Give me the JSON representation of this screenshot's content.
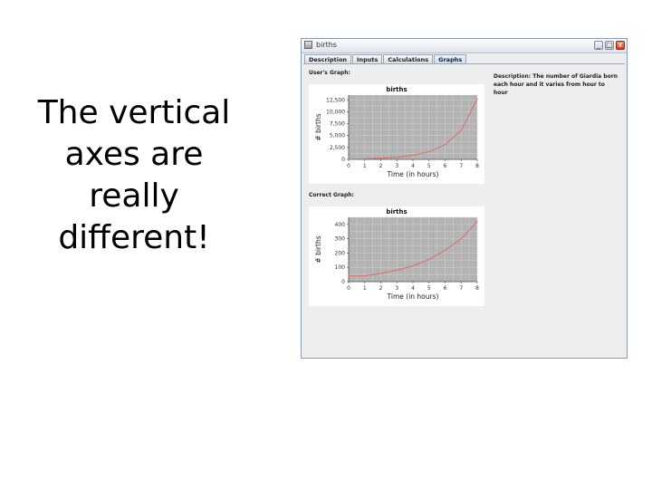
{
  "slide": {
    "lines": [
      "The vertical",
      "axes are",
      "really",
      "different!"
    ]
  },
  "window": {
    "title": "births",
    "controls": {
      "minimize": "_",
      "maximize": "□",
      "close": "x"
    },
    "tabs": [
      "Description",
      "Inputs",
      "Calculations",
      "Graphs"
    ],
    "active_tab": "Graphs",
    "users_graph_label": "User's Graph:",
    "correct_graph_label": "Correct Graph:",
    "description": "Description: The number of Giardia born each hour and it varies from hour to hour"
  },
  "colors": {
    "plot_bg": "#b3b3b3",
    "grid": "#d2d2d2",
    "line": "#e06a6a"
  },
  "chart_data": [
    {
      "type": "line",
      "title": "births",
      "xlabel": "Time (in hours)",
      "ylabel": "# births",
      "x": [
        0,
        1,
        2,
        3,
        4,
        5,
        6,
        7,
        8
      ],
      "xlim": [
        0,
        8
      ],
      "ylim": [
        0,
        13500
      ],
      "yticks": [
        0,
        2500,
        5000,
        7500,
        10000,
        12500
      ],
      "ytick_labels": [
        "0",
        "2,500",
        "5,000",
        "7,500",
        "10,000",
        "12,500"
      ],
      "xticks": [
        0,
        1,
        2,
        3,
        4,
        5,
        6,
        7,
        8
      ],
      "series": [
        {
          "values": [
            40,
            110,
            240,
            450,
            850,
            1600,
            3100,
            6100,
            12700
          ]
        }
      ],
      "grid": true
    },
    {
      "type": "line",
      "title": "births",
      "xlabel": "Time (in hours)",
      "ylabel": "# births",
      "x": [
        0,
        1,
        2,
        3,
        4,
        5,
        6,
        7,
        8
      ],
      "xlim": [
        0,
        8
      ],
      "ylim": [
        0,
        450
      ],
      "yticks": [
        0,
        100,
        200,
        300,
        400
      ],
      "ytick_labels": [
        "0",
        "100",
        "200",
        "300",
        "400"
      ],
      "xticks": [
        0,
        1,
        2,
        3,
        4,
        5,
        6,
        7,
        8
      ],
      "series": [
        {
          "values": [
            40,
            40,
            58,
            80,
            110,
            155,
            220,
            300,
            420
          ]
        }
      ],
      "grid": true
    }
  ]
}
